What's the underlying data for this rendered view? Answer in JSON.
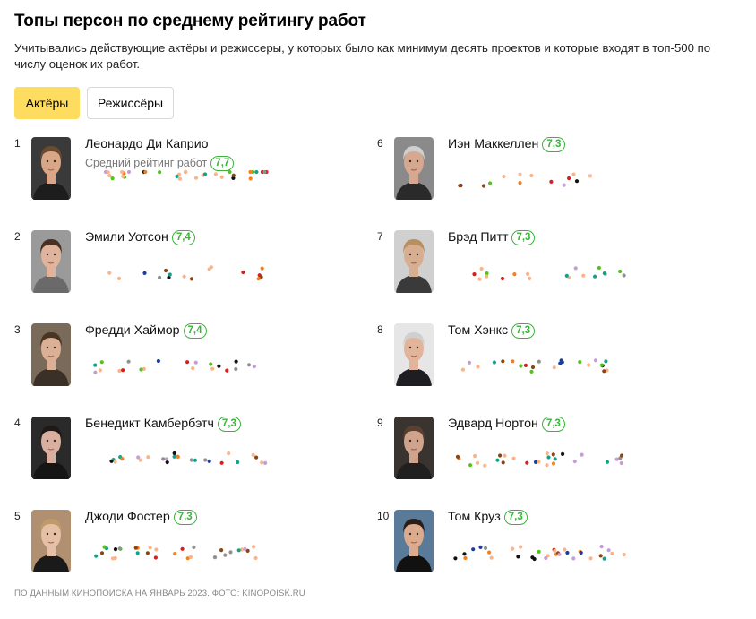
{
  "title": "Топы персон по среднему рейтингу работ",
  "description": "Учитывались действующие актёры и режиссеры, у которых было как минимум десять проектов и которые входят в топ-500 по числу оценок их работ.",
  "tabs": [
    {
      "label": "Актёры",
      "active": true
    },
    {
      "label": "Режиссёры",
      "active": false
    }
  ],
  "rating_label": "Средний рейтинг работ",
  "colors": {
    "accent": "#fedc5f",
    "rating": "#3bb33b"
  },
  "people": [
    {
      "rank": "1",
      "name": "Леонардо Ди Каприо",
      "rating": "7,7",
      "photo": {
        "bg": "#3a3a3a",
        "hair": "#6b4a2e",
        "skin": "#d9a788",
        "shirt": "#1d1d1d"
      }
    },
    {
      "rank": "2",
      "name": "Эмили Уотсон",
      "rating": "7,4",
      "photo": {
        "bg": "#9a9a9a",
        "hair": "#4a3020",
        "skin": "#e0b49c",
        "shirt": "#6a6a6a"
      }
    },
    {
      "rank": "3",
      "name": "Фредди Хаймор",
      "rating": "7,4",
      "photo": {
        "bg": "#7a6a5a",
        "hair": "#4a3524",
        "skin": "#dcb095",
        "shirt": "#3a3028"
      }
    },
    {
      "rank": "4",
      "name": "Бенедикт Камбербэтч",
      "rating": "7,3",
      "photo": {
        "bg": "#2a2a2a",
        "hair": "#1d1a18",
        "skin": "#d9b0a0",
        "shirt": "#151515"
      }
    },
    {
      "rank": "5",
      "name": "Джоди Фостер",
      "rating": "7,3",
      "photo": {
        "bg": "#b09070",
        "hair": "#c09a6a",
        "skin": "#e6c0a6",
        "shirt": "#1a1a1a"
      }
    },
    {
      "rank": "6",
      "name": "Иэн Маккеллен",
      "rating": "7,3",
      "photo": {
        "bg": "#8a8a8a",
        "hair": "#cfcfcf",
        "skin": "#d6a890",
        "shirt": "#2a2a2a"
      }
    },
    {
      "rank": "7",
      "name": "Брэд Питт",
      "rating": "7,3",
      "photo": {
        "bg": "#d0d0d0",
        "hair": "#b89060",
        "skin": "#d8ae90",
        "shirt": "#3a3a3a"
      }
    },
    {
      "rank": "8",
      "name": "Том Хэнкс",
      "rating": "7,3",
      "photo": {
        "bg": "#e6e6e6",
        "hair": "#cfcfcf",
        "skin": "#e2b49a",
        "shirt": "#1e1e22"
      }
    },
    {
      "rank": "9",
      "name": "Эдвард Нортон",
      "rating": "7,3",
      "photo": {
        "bg": "#3a3430",
        "hair": "#5a4030",
        "skin": "#d0a48c",
        "shirt": "#202020"
      }
    },
    {
      "rank": "10",
      "name": "Том Круз",
      "rating": "7,3",
      "photo": {
        "bg": "#5a7a9a",
        "hair": "#2a1e18",
        "skin": "#dcaa8c",
        "shirt": "#111111"
      }
    }
  ],
  "footer": "ПО ДАННЫМ КИНОПОИСКА НА ЯНВАРЬ 2023. ФОТО: KINOPOISK.RU"
}
